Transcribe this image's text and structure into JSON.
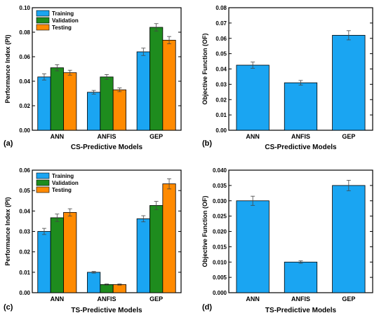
{
  "colors": {
    "Training": "#1aa5f2",
    "Validation": "#1e8c1e",
    "Testing": "#ff8a00",
    "single": "#1aa5f2"
  },
  "chart_data": [
    {
      "type": "bar",
      "panel": "(a)",
      "xlabel": "CS-Predictive Models",
      "ylabel": "Performance Index (PI)",
      "categories": [
        "ANN",
        "ANFIS",
        "GEP"
      ],
      "ylim": [
        0,
        0.1
      ],
      "yticks": [
        "0.00",
        "0.02",
        "0.04",
        "0.06",
        "0.08",
        "0.10"
      ],
      "legend": "top-left",
      "series": [
        {
          "name": "Training",
          "values": [
            0.0435,
            0.031,
            0.064
          ],
          "errors": [
            0.0025,
            0.0015,
            0.003
          ]
        },
        {
          "name": "Validation",
          "values": [
            0.051,
            0.0435,
            0.084
          ],
          "errors": [
            0.0025,
            0.002,
            0.003
          ]
        },
        {
          "name": "Testing",
          "values": [
            0.047,
            0.033,
            0.0735
          ],
          "errors": [
            0.002,
            0.0015,
            0.003
          ]
        }
      ]
    },
    {
      "type": "bar",
      "panel": "(b)",
      "xlabel": "CS-Predictive Models",
      "ylabel": "Objective Function (OF)",
      "categories": [
        "ANN",
        "ANFIS",
        "GEP"
      ],
      "ylim": [
        0,
        0.08
      ],
      "yticks": [
        "0.00",
        "0.01",
        "0.02",
        "0.03",
        "0.04",
        "0.05",
        "0.06",
        "0.07",
        "0.08"
      ],
      "series": [
        {
          "name": "",
          "values": [
            0.0425,
            0.031,
            0.062
          ],
          "errors": [
            0.002,
            0.0015,
            0.003
          ]
        }
      ]
    },
    {
      "type": "bar",
      "panel": "(c)",
      "xlabel": "TS-Predictive Models",
      "ylabel": "Performance Index (PI)",
      "categories": [
        "ANN",
        "ANFIS",
        "GEP"
      ],
      "ylim": [
        0,
        0.06
      ],
      "yticks": [
        "0.00",
        "0.01",
        "0.02",
        "0.03",
        "0.04",
        "0.05",
        "0.06"
      ],
      "legend": "top-left",
      "series": [
        {
          "name": "Training",
          "values": [
            0.03,
            0.01,
            0.0362
          ],
          "errors": [
            0.0015,
            0.0004,
            0.0015
          ]
        },
        {
          "name": "Validation",
          "values": [
            0.0367,
            0.004,
            0.0427
          ],
          "errors": [
            0.0018,
            0.0003,
            0.002
          ]
        },
        {
          "name": "Testing",
          "values": [
            0.0393,
            0.004,
            0.0533
          ],
          "errors": [
            0.0018,
            0.0003,
            0.0025
          ]
        }
      ]
    },
    {
      "type": "bar",
      "panel": "(d)",
      "xlabel": "TS-Predictive Models",
      "ylabel": "Objective Function (OF)",
      "categories": [
        "ANN",
        "ANFIS",
        "GEP"
      ],
      "ylim": [
        0,
        0.04
      ],
      "yticks": [
        "0.000",
        "0.005",
        "0.010",
        "0.015",
        "0.020",
        "0.025",
        "0.030",
        "0.035",
        "0.040"
      ],
      "series": [
        {
          "name": "",
          "values": [
            0.03,
            0.01,
            0.035
          ],
          "errors": [
            0.0015,
            0.0004,
            0.0017
          ]
        }
      ]
    }
  ]
}
